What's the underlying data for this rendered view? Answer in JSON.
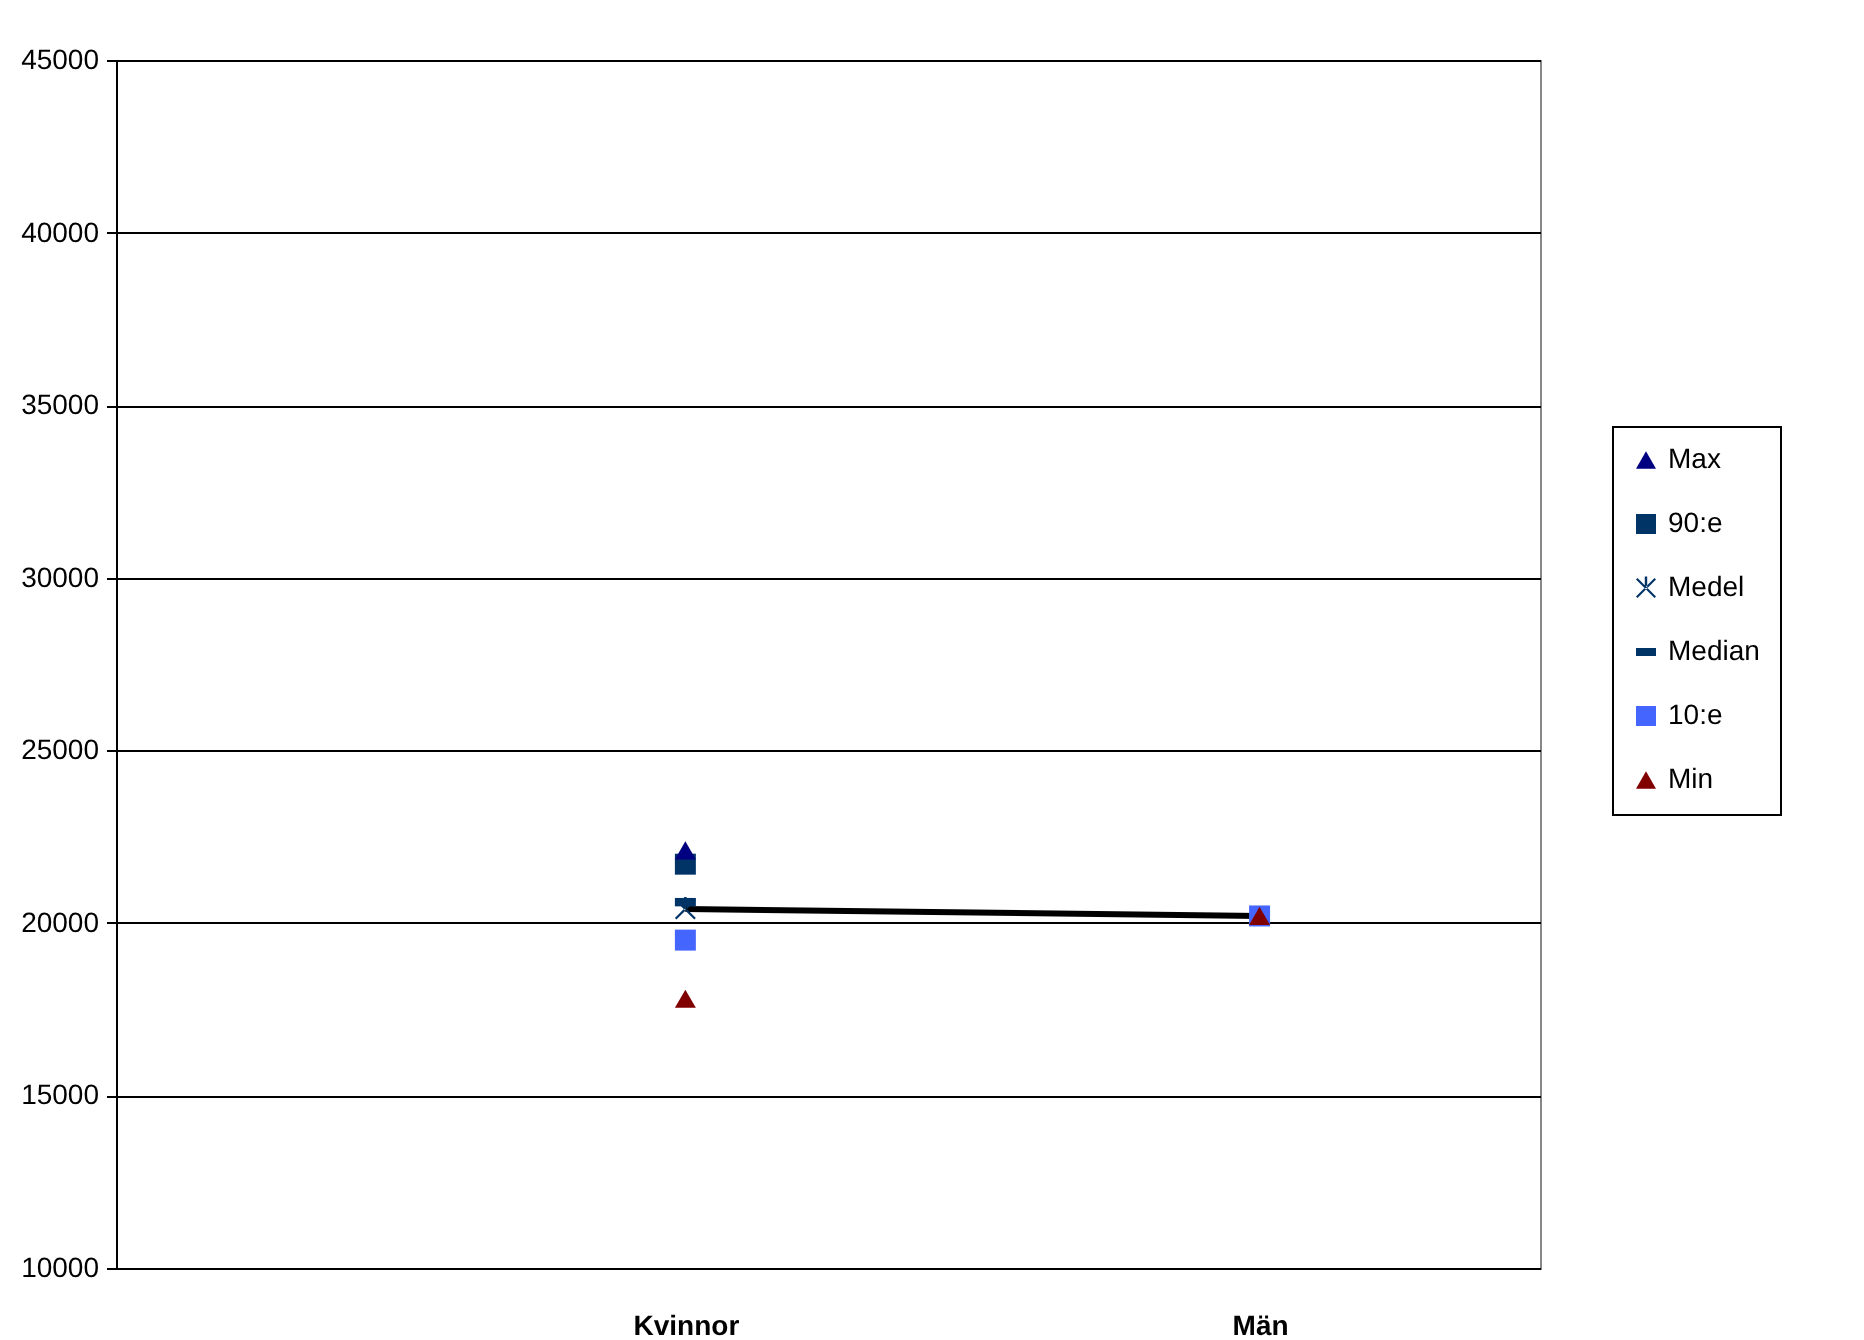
{
  "chart_data": {
    "type": "scatter",
    "categories": [
      "Kvinnor",
      "Män"
    ],
    "series": [
      {
        "name": null,
        "type": "line",
        "color": "#000000",
        "marker": "none",
        "line_style": "solid",
        "values": [
          20400,
          20200
        ]
      },
      {
        "name": "Max",
        "color": "#000080",
        "marker": "triangle",
        "values": [
          22100,
          null
        ]
      },
      {
        "name": "90:e",
        "color": "#003366",
        "marker": "square",
        "values": [
          21700,
          null
        ]
      },
      {
        "name": "Medel",
        "color": "#003366",
        "marker": "cross",
        "values": [
          20400,
          null
        ]
      },
      {
        "name": "Median",
        "color": "#003366",
        "values": [
          20600,
          null
        ]
      },
      {
        "name": "10:e",
        "color": "#4466ff",
        "marker": "square",
        "values": [
          19500,
          20200
        ]
      },
      {
        "name": "Min",
        "color": "#800000",
        "marker": "triangle",
        "values": [
          17800,
          20200
        ]
      }
    ],
    "ylim": [
      10000,
      45000
    ],
    "yticks": [
      10000,
      15000,
      20000,
      25000,
      30000,
      35000,
      40000,
      45000
    ],
    "grid": "y",
    "legend": "right"
  }
}
